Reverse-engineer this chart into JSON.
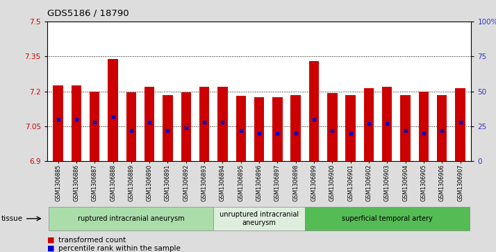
{
  "title": "GDS5186 / 18790",
  "samples": [
    "GSM1306885",
    "GSM1306886",
    "GSM1306887",
    "GSM1306888",
    "GSM1306889",
    "GSM1306890",
    "GSM1306891",
    "GSM1306892",
    "GSM1306893",
    "GSM1306894",
    "GSM1306895",
    "GSM1306896",
    "GSM1306897",
    "GSM1306898",
    "GSM1306899",
    "GSM1306900",
    "GSM1306901",
    "GSM1306902",
    "GSM1306903",
    "GSM1306904",
    "GSM1306905",
    "GSM1306906",
    "GSM1306907"
  ],
  "transformed_count": [
    7.225,
    7.225,
    7.2,
    7.34,
    7.195,
    7.22,
    7.185,
    7.197,
    7.22,
    7.22,
    7.18,
    7.175,
    7.175,
    7.185,
    7.33,
    7.193,
    7.185,
    7.215,
    7.22,
    7.185,
    7.2,
    7.185,
    7.215
  ],
  "percentile_rank": [
    30,
    30,
    28,
    32,
    22,
    28,
    22,
    24,
    28,
    28,
    22,
    20,
    20,
    20,
    30,
    22,
    20,
    27,
    27,
    22,
    20,
    22,
    28
  ],
  "ylim_left": [
    6.9,
    7.5
  ],
  "ylim_right": [
    0,
    100
  ],
  "yticks_left": [
    6.9,
    7.05,
    7.2,
    7.35,
    7.5
  ],
  "yticks_right": [
    0,
    25,
    50,
    75,
    100
  ],
  "ytick_labels_left": [
    "6.9",
    "7.05",
    "7.2",
    "7.35",
    "7.5"
  ],
  "ytick_labels_right": [
    "0",
    "25",
    "50",
    "75",
    "100%"
  ],
  "hlines": [
    7.05,
    7.2,
    7.35
  ],
  "bar_color": "#cc0000",
  "percentile_color": "#0000cc",
  "bar_bottom": 6.9,
  "groups": [
    {
      "label": "ruptured intracranial aneurysm",
      "start": 0,
      "end": 9,
      "color": "#aaddaa"
    },
    {
      "label": "unruptured intracranial\naneurysm",
      "start": 9,
      "end": 14,
      "color": "#ddeedd"
    },
    {
      "label": "superficial temporal artery",
      "start": 14,
      "end": 23,
      "color": "#55bb55"
    }
  ],
  "bg_color": "#dddddd",
  "plot_bg_color": "#ffffff"
}
